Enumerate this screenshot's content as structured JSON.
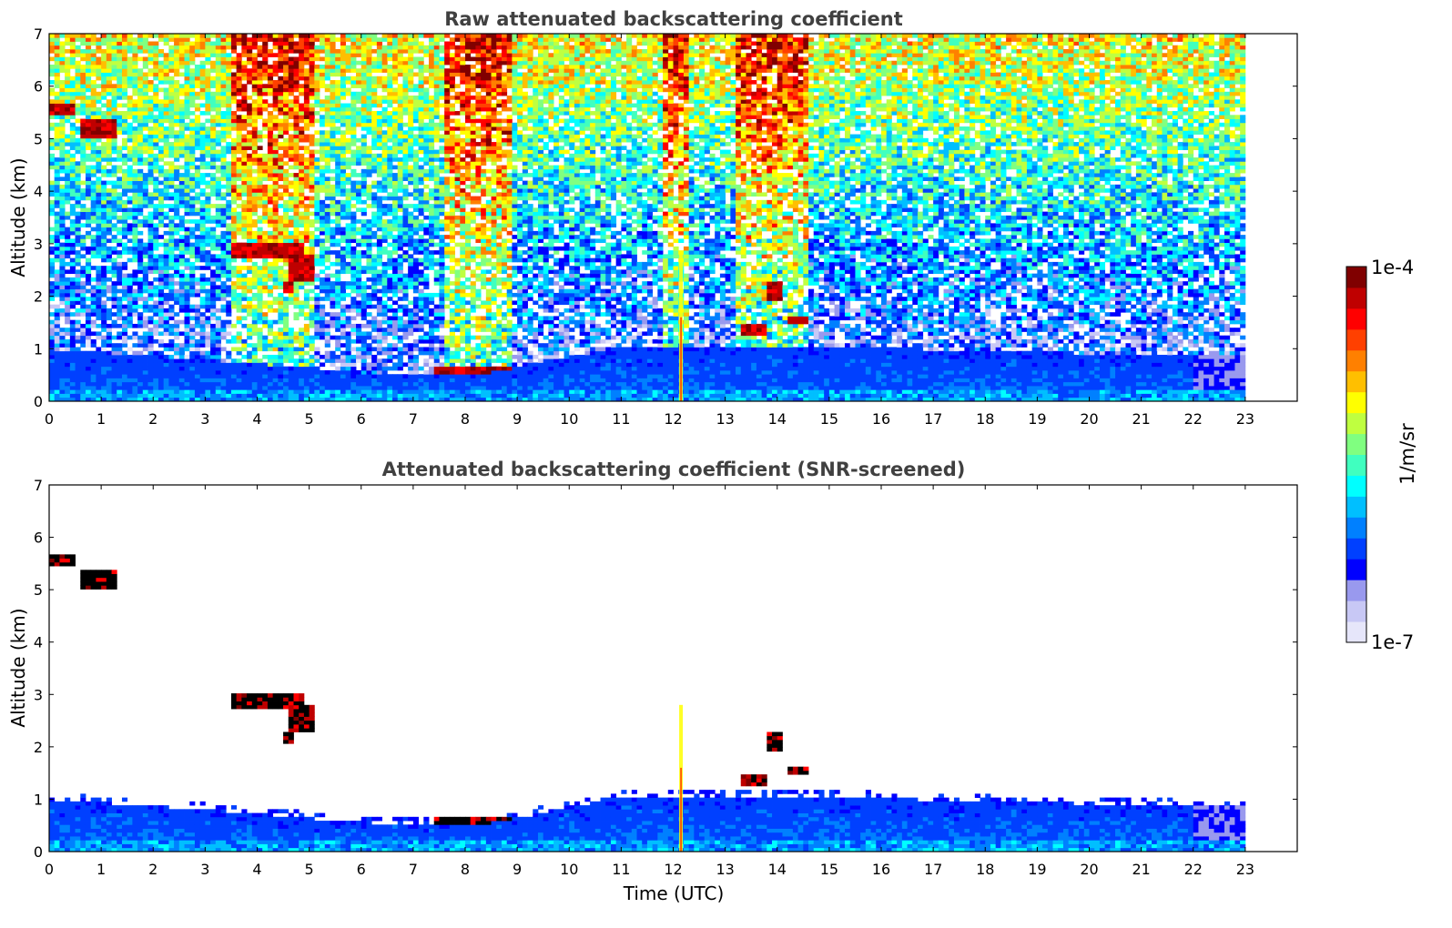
{
  "chart_data": [
    {
      "type": "heatmap",
      "title": "Raw attenuated backscattering coefficient",
      "ylabel": "Altitude (km)",
      "xlabel": "",
      "xlim": [
        0,
        24
      ],
      "ylim": [
        0,
        7
      ],
      "xticks": [
        "0",
        "1",
        "2",
        "3",
        "4",
        "5",
        "6",
        "7",
        "8",
        "9",
        "10",
        "11",
        "12",
        "13",
        "14",
        "15",
        "16",
        "17",
        "18",
        "19",
        "20",
        "21",
        "22",
        "23"
      ],
      "yticks": [
        "0",
        "1",
        "2",
        "3",
        "4",
        "5",
        "6",
        "7"
      ],
      "data_extent_time": [
        0,
        23
      ],
      "boundary_layer_top_km": [
        {
          "t": 0,
          "z": 1.0
        },
        {
          "t": 3,
          "z": 0.8
        },
        {
          "t": 6,
          "z": 0.55
        },
        {
          "t": 8.5,
          "z": 0.55
        },
        {
          "t": 11,
          "z": 1.05
        },
        {
          "t": 15,
          "z": 1.05
        },
        {
          "t": 18,
          "z": 0.95
        },
        {
          "t": 21,
          "z": 0.9
        },
        {
          "t": 23,
          "z": 0.85
        }
      ],
      "clouds": [
        {
          "t0": 0.0,
          "t1": 0.45,
          "z0": 5.45,
          "z1": 5.65
        },
        {
          "t0": 0.6,
          "t1": 1.3,
          "z0": 5.0,
          "z1": 5.4
        },
        {
          "t0": 3.5,
          "t1": 4.9,
          "z0": 2.7,
          "z1": 3.0
        },
        {
          "t0": 4.5,
          "t1": 4.7,
          "z0": 2.1,
          "z1": 2.3
        },
        {
          "t0": 4.6,
          "t1": 5.1,
          "z0": 2.3,
          "z1": 2.8
        },
        {
          "t0": 7.4,
          "t1": 9.0,
          "z0": 0.5,
          "z1": 0.65
        },
        {
          "t0": 13.3,
          "t1": 13.8,
          "z0": 1.25,
          "z1": 1.5
        },
        {
          "t0": 13.8,
          "t1": 14.1,
          "z0": 1.9,
          "z1": 2.3
        },
        {
          "t0": 14.2,
          "t1": 14.6,
          "z0": 1.45,
          "z1": 1.6
        }
      ]
    },
    {
      "type": "heatmap",
      "title": "Attenuated backscattering coefficient (SNR-screened)",
      "ylabel": "Altitude (km)",
      "xlabel": "Time (UTC)",
      "xlim": [
        0,
        24
      ],
      "ylim": [
        0,
        7
      ],
      "xticks": [
        "0",
        "1",
        "2",
        "3",
        "4",
        "5",
        "6",
        "7",
        "8",
        "9",
        "10",
        "11",
        "12",
        "13",
        "14",
        "15",
        "16",
        "17",
        "18",
        "19",
        "20",
        "21",
        "22",
        "23"
      ],
      "yticks": [
        "0",
        "1",
        "2",
        "3",
        "4",
        "5",
        "6",
        "7"
      ],
      "data_extent_time": [
        0,
        23
      ]
    }
  ],
  "colorbar": {
    "label": "1/m/sr",
    "max_label": "1e-4",
    "min_label": "1e-7",
    "colors": [
      "#e6e6fa",
      "#c8c8f5",
      "#9999ee",
      "#0000ff",
      "#0040ff",
      "#0080ff",
      "#00bfff",
      "#00ffff",
      "#40ffbf",
      "#80ff80",
      "#bfff40",
      "#ffff00",
      "#ffbf00",
      "#ff8000",
      "#ff4000",
      "#ff0000",
      "#bf0000",
      "#800000"
    ]
  }
}
